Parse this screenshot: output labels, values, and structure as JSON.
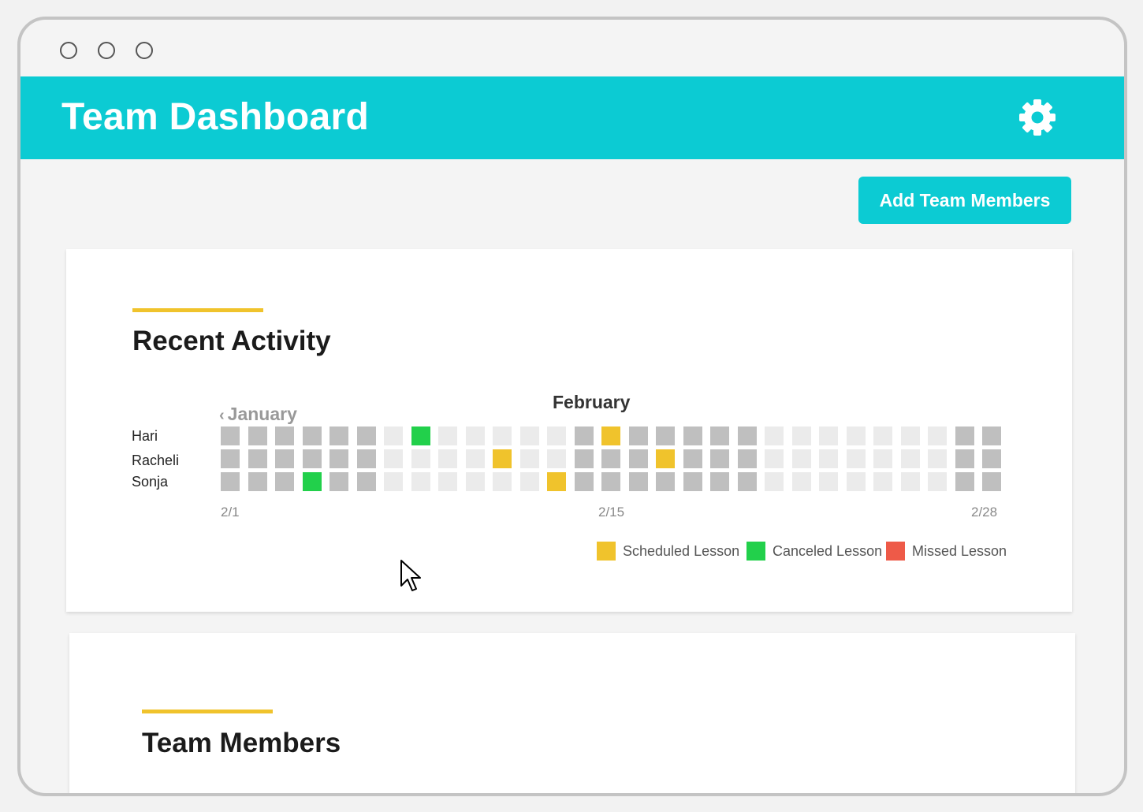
{
  "header": {
    "title": "Team Dashboard",
    "settings_icon": "gear-icon"
  },
  "actions": {
    "add_members_label": "Add Team Members"
  },
  "activity": {
    "title": "Recent Activity",
    "prev_month_label": "January",
    "current_month_label": "February",
    "rows": [
      {
        "name": "Hari",
        "cells": "DDDDDDLCLLLLLDSDDDDDLLLLLLLDD"
      },
      {
        "name": "Racheli",
        "cells": "DDDDDDLLLLSLLDDDSDDDLLLLLLLDD"
      },
      {
        "name": "Sonja",
        "cells": "DDDCDDLLLLLLSDDDDDDDLLLLLLLDD"
      }
    ],
    "date_labels": [
      {
        "text": "2/1",
        "index": 0
      },
      {
        "text": "2/15",
        "index": 14
      },
      {
        "text": "2/28",
        "index": 28
      }
    ],
    "legend": [
      {
        "key": "S",
        "label": "Scheduled Lesson"
      },
      {
        "key": "C",
        "label": "Canceled Lesson"
      },
      {
        "key": "M",
        "label": "Missed Lesson"
      }
    ],
    "colors": {
      "D": "#bfbfbf",
      "L": "#ebebeb",
      "S": "#f0c32c",
      "C": "#22d04b",
      "M": "#ee5a48"
    }
  },
  "members": {
    "title": "Team Members"
  },
  "colors": {
    "accent": "#0ccbd3",
    "underline": "#f0c32c"
  }
}
